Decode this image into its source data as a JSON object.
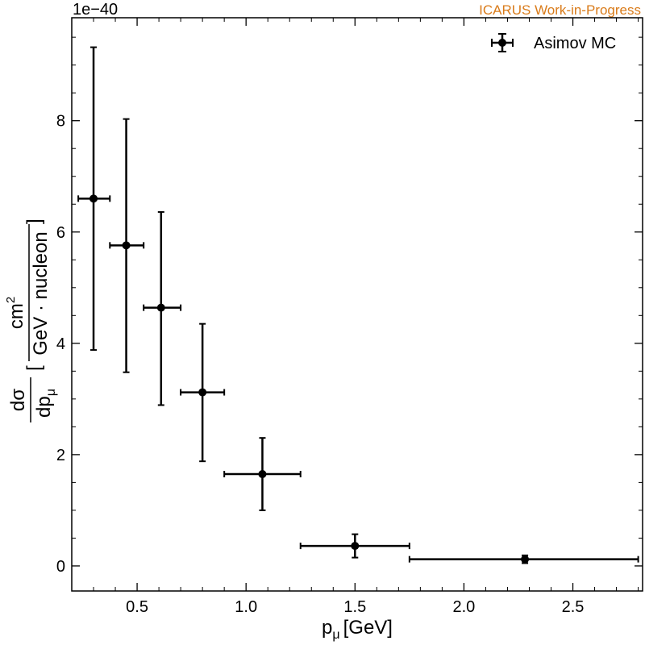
{
  "chart_data": {
    "type": "scatter",
    "title": "",
    "corner_label": "ICARUS Work-in-Progress",
    "corner_label_color": "#d97b1a",
    "y_multiplier": "1e−40",
    "xlabel": {
      "main": "p",
      "sub": "μ",
      "unit": "[GeV]"
    },
    "ylabel": {
      "num": "dσ",
      "den_main": "dp",
      "den_sub": "μ",
      "unit_num": "cm",
      "unit_sup": "2",
      "unit_den": "GeV · nucleon"
    },
    "xlim": [
      0.2,
      2.82
    ],
    "ylim": [
      -0.45,
      9.85
    ],
    "xticks": [
      "0.5",
      "1.0",
      "1.5",
      "2.0",
      "2.5"
    ],
    "xtick_values": [
      0.5,
      1.0,
      1.5,
      2.0,
      2.5
    ],
    "yticks": [
      "0",
      "2",
      "4",
      "6",
      "8"
    ],
    "ytick_values": [
      0,
      2,
      4,
      6,
      8
    ],
    "grid": false,
    "legend_position": "top-right",
    "series": [
      {
        "name": "Asimov MC",
        "color": "#000000",
        "points": [
          {
            "x": 0.3,
            "xlo": 0.23,
            "xhi": 0.375,
            "y": 6.6,
            "ylo": 3.88,
            "yhi": 9.32
          },
          {
            "x": 0.45,
            "xlo": 0.375,
            "xhi": 0.53,
            "y": 5.76,
            "ylo": 3.48,
            "yhi": 8.03
          },
          {
            "x": 0.61,
            "xlo": 0.53,
            "xhi": 0.7,
            "y": 4.64,
            "ylo": 2.89,
            "yhi": 6.36
          },
          {
            "x": 0.8,
            "xlo": 0.7,
            "xhi": 0.9,
            "y": 3.12,
            "ylo": 1.88,
            "yhi": 4.35
          },
          {
            "x": 1.075,
            "xlo": 0.9,
            "xhi": 1.25,
            "y": 1.65,
            "ylo": 1.0,
            "yhi": 2.3
          },
          {
            "x": 1.5,
            "xlo": 1.25,
            "xhi": 1.75,
            "y": 0.36,
            "ylo": 0.15,
            "yhi": 0.57
          },
          {
            "x": 2.28,
            "xlo": 1.75,
            "xhi": 2.8,
            "y": 0.12,
            "ylo": 0.05,
            "yhi": 0.19
          }
        ]
      }
    ]
  }
}
